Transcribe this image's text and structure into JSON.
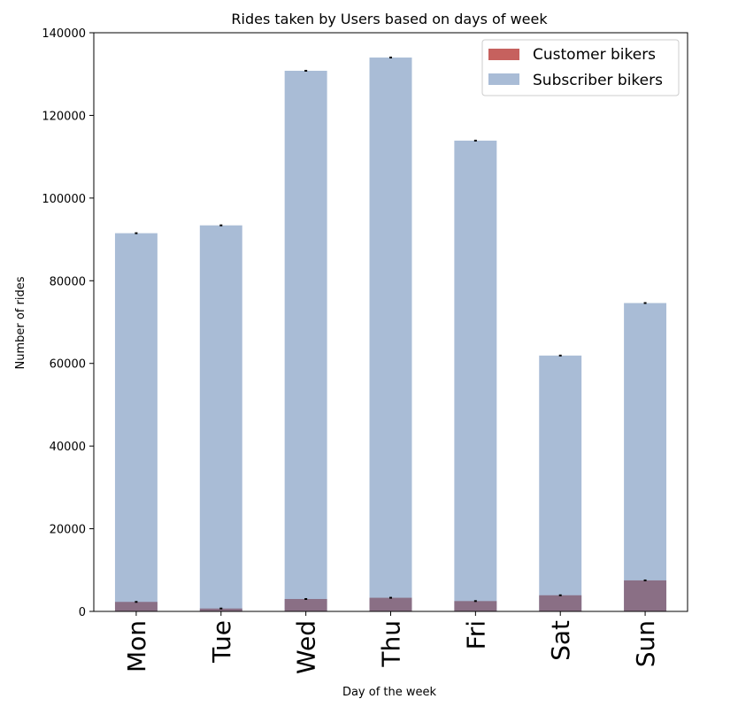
{
  "chart_data": {
    "type": "bar",
    "title": "Rides taken by Users based on days of week",
    "xlabel": "Day of the week",
    "ylabel": "Number of rides",
    "ylim": [
      0,
      140000
    ],
    "yticks": [
      0,
      20000,
      40000,
      60000,
      80000,
      100000,
      120000,
      140000
    ],
    "categories": [
      "Mon",
      "Tue",
      "Wed",
      "Thu",
      "Fri",
      "Sat",
      "Sun"
    ],
    "series": [
      {
        "name": "Customer bikers",
        "color": "#c0504d",
        "opacity": 0.9,
        "values": [
          2300,
          700,
          3000,
          3300,
          2500,
          3900,
          7500
        ]
      },
      {
        "name": "Subscriber bikers",
        "color": "#a9bcd6",
        "opacity": 0.7,
        "values": [
          91500,
          93400,
          130800,
          134000,
          113900,
          61900,
          74600
        ]
      }
    ],
    "legend": "top-right",
    "grid": false,
    "overlap_color": "#8a6f85"
  }
}
